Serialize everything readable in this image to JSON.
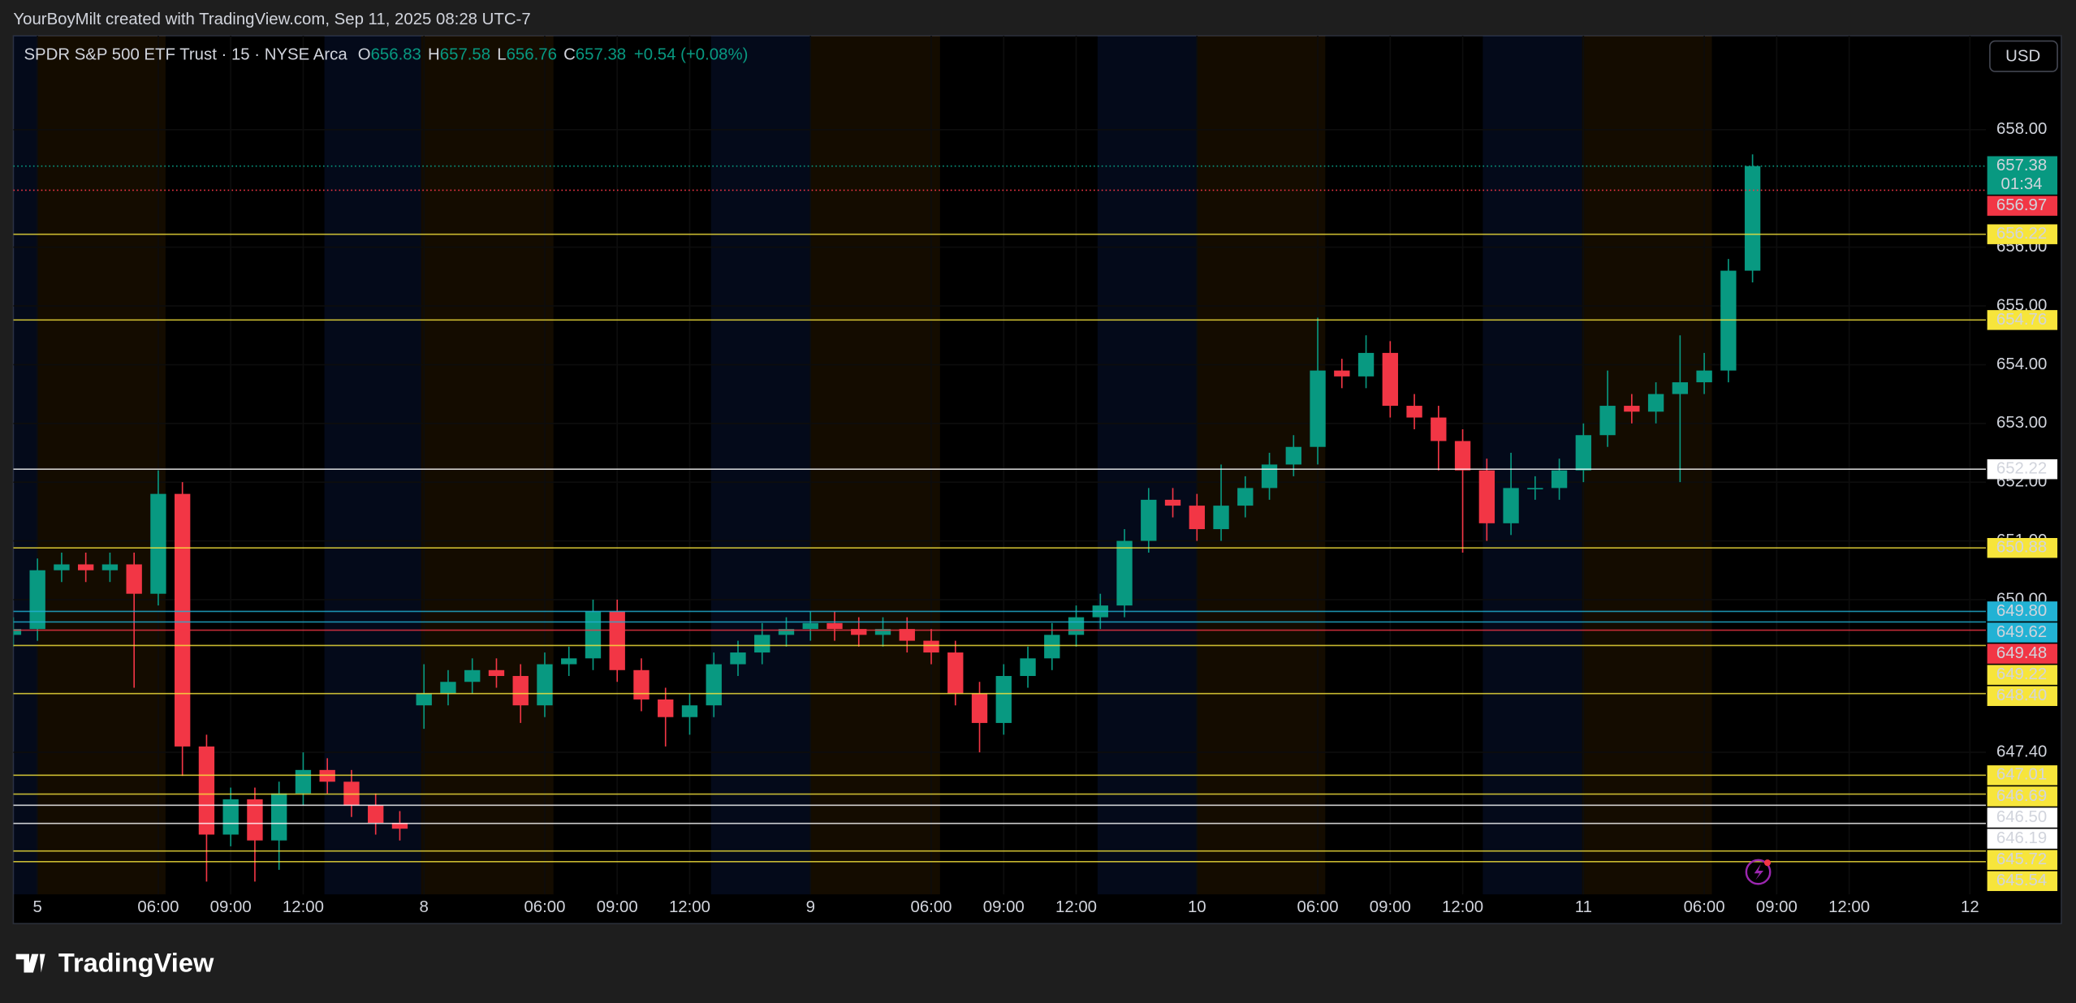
{
  "header": "YourBoyMilt created with TradingView.com, Sep 11, 2025 08:28 UTC-7",
  "footer_logo": "TradingView",
  "currency": "USD",
  "chart_data": {
    "type": "candlestick",
    "legend": {
      "symbol": "SPDR S&P 500 ETF Trust · 15 · NYSE Arca",
      "ohlc": [
        {
          "key": "O",
          "value": "656.83"
        },
        {
          "key": "H",
          "value": "657.58"
        },
        {
          "key": "L",
          "value": "656.76"
        },
        {
          "key": "C",
          "value": "657.38"
        }
      ],
      "change": "+0.54 (+0.08%)"
    },
    "up_color": "#089981",
    "down_color": "#f23645",
    "x": [
      -1,
      0,
      1,
      2,
      3,
      4,
      5,
      6,
      7,
      8,
      9,
      10,
      11,
      12,
      13,
      14,
      15,
      16,
      17,
      18,
      19,
      20,
      21,
      22,
      23,
      24,
      25,
      26,
      27,
      28,
      29,
      30,
      31,
      32,
      33,
      34,
      35,
      36,
      37,
      38,
      39,
      40,
      41,
      42,
      43,
      44,
      45,
      46,
      47,
      48,
      49,
      50,
      51,
      52,
      53,
      54,
      55,
      56,
      57,
      58,
      59,
      60,
      61,
      62,
      63,
      64,
      65,
      66,
      67,
      68,
      69,
      70,
      71
    ],
    "open": [
      649.4,
      649.5,
      650.5,
      650.6,
      650.5,
      650.6,
      650.1,
      651.8,
      647.5,
      646.0,
      646.6,
      645.9,
      646.7,
      647.1,
      646.9,
      646.5,
      646.2,
      648.2,
      648.4,
      648.6,
      648.8,
      648.7,
      648.2,
      648.9,
      649.0,
      649.8,
      648.8,
      648.3,
      648.0,
      648.2,
      648.9,
      649.1,
      649.4,
      649.5,
      649.6,
      649.5,
      649.4,
      649.5,
      649.3,
      649.1,
      648.4,
      647.9,
      648.7,
      649.0,
      649.4,
      649.7,
      649.9,
      651.0,
      651.7,
      651.6,
      651.2,
      651.6,
      651.9,
      652.3,
      652.6,
      653.9,
      653.8,
      654.2,
      653.3,
      653.1,
      652.7,
      652.2,
      651.3,
      651.9,
      651.9,
      652.2,
      652.8,
      653.3,
      653.2,
      653.5,
      653.7,
      653.9,
      655.6
    ],
    "high": [
      649.7,
      650.7,
      650.8,
      650.8,
      650.8,
      650.8,
      652.2,
      652.0,
      647.7,
      646.8,
      646.8,
      646.9,
      647.4,
      647.3,
      647.1,
      646.7,
      646.4,
      648.9,
      648.8,
      649.0,
      649.0,
      648.9,
      649.1,
      649.2,
      650.0,
      650.0,
      649.0,
      648.5,
      648.4,
      649.1,
      649.3,
      649.6,
      649.7,
      649.8,
      649.8,
      649.7,
      649.7,
      649.7,
      649.5,
      649.3,
      648.6,
      648.9,
      649.2,
      649.6,
      649.9,
      650.1,
      651.2,
      651.9,
      651.9,
      651.8,
      652.3,
      652.1,
      652.5,
      652.8,
      654.8,
      654.1,
      654.5,
      654.4,
      653.5,
      653.3,
      652.9,
      652.4,
      652.5,
      652.1,
      652.4,
      653.0,
      653.9,
      653.5,
      653.7,
      654.5,
      654.2,
      655.8,
      657.58
    ],
    "low": [
      649.2,
      649.3,
      650.3,
      650.3,
      650.3,
      648.5,
      649.9,
      647.0,
      645.2,
      645.8,
      645.2,
      645.4,
      646.5,
      646.7,
      646.3,
      646.0,
      645.9,
      647.8,
      648.2,
      648.4,
      648.5,
      647.9,
      648.0,
      648.7,
      648.8,
      648.6,
      648.1,
      647.5,
      647.7,
      648.0,
      648.7,
      648.9,
      649.2,
      649.3,
      649.3,
      649.2,
      649.2,
      649.1,
      648.9,
      648.2,
      647.4,
      647.7,
      648.5,
      648.8,
      649.2,
      649.5,
      649.7,
      650.8,
      651.4,
      651.0,
      651.0,
      651.4,
      651.7,
      652.1,
      652.3,
      653.6,
      653.6,
      653.1,
      652.9,
      652.2,
      650.8,
      651.0,
      651.1,
      651.7,
      651.7,
      652.0,
      652.6,
      653.0,
      653.0,
      652.0,
      653.5,
      653.7,
      655.4
    ],
    "close": [
      649.5,
      650.5,
      650.6,
      650.5,
      650.6,
      650.1,
      651.8,
      647.5,
      646.0,
      646.6,
      645.9,
      646.7,
      647.1,
      646.9,
      646.5,
      646.2,
      646.1,
      648.4,
      648.6,
      648.8,
      648.7,
      648.2,
      648.9,
      649.0,
      649.8,
      648.8,
      648.3,
      648.0,
      648.2,
      648.9,
      649.1,
      649.4,
      649.5,
      649.6,
      649.5,
      649.4,
      649.5,
      649.3,
      649.1,
      648.4,
      647.9,
      648.7,
      649.0,
      649.4,
      649.7,
      649.9,
      651.0,
      651.7,
      651.6,
      651.2,
      651.6,
      651.9,
      652.3,
      652.6,
      653.9,
      653.8,
      654.2,
      653.3,
      653.1,
      652.7,
      652.2,
      651.3,
      651.9,
      651.9,
      652.2,
      652.8,
      653.3,
      653.2,
      653.5,
      653.7,
      653.9,
      655.6,
      657.38
    ],
    "xlim": [
      -1,
      80.66
    ],
    "xticks": [
      {
        "value": 0,
        "label": "5"
      },
      {
        "value": 5,
        "label": "06:00"
      },
      {
        "value": 8,
        "label": "09:00"
      },
      {
        "value": 11,
        "label": "12:00"
      },
      {
        "value": 16,
        "label": "8"
      },
      {
        "value": 21,
        "label": "06:00"
      },
      {
        "value": 24,
        "label": "09:00"
      },
      {
        "value": 27,
        "label": "12:00"
      },
      {
        "value": 32,
        "label": "9"
      },
      {
        "value": 37,
        "label": "06:00"
      },
      {
        "value": 40,
        "label": "09:00"
      },
      {
        "value": 43,
        "label": "12:00"
      },
      {
        "value": 48,
        "label": "10"
      },
      {
        "value": 53,
        "label": "06:00"
      },
      {
        "value": 56,
        "label": "09:00"
      },
      {
        "value": 59,
        "label": "12:00"
      },
      {
        "value": 64,
        "label": "11"
      },
      {
        "value": 69,
        "label": "06:00"
      },
      {
        "value": 72,
        "label": "09:00"
      },
      {
        "value": 75,
        "label": "12:00"
      },
      {
        "value": 80,
        "label": "12"
      }
    ],
    "ylim": [
      644.98,
      659.6
    ],
    "yticks": [
      {
        "value": 658,
        "label": "658.00"
      },
      {
        "value": 656,
        "label": "656.00"
      },
      {
        "value": 655,
        "label": "655.00"
      },
      {
        "value": 654,
        "label": "654.00"
      },
      {
        "value": 653,
        "label": "653.00"
      },
      {
        "value": 652,
        "label": "652.00"
      },
      {
        "value": 651,
        "label": "651.00"
      },
      {
        "value": 650,
        "label": "650.00"
      },
      {
        "value": 647.4,
        "label": "647.40"
      }
    ],
    "last_price": {
      "value": 657.38,
      "label": "657.38",
      "countdown": "01:34",
      "color": "#089981"
    },
    "prev_price": {
      "value": 656.97,
      "label": "656.97",
      "color": "#f23645"
    },
    "levels": [
      {
        "value": 656.22,
        "label": "656.22",
        "color": "#f7e53b",
        "text_color": "#000000"
      },
      {
        "value": 654.76,
        "label": "654.76",
        "color": "#f7e53b",
        "text_color": "#000000"
      },
      {
        "value": 652.22,
        "label": "652.22",
        "color": "#ffffff",
        "text_color": "#000000"
      },
      {
        "value": 650.88,
        "label": "650.88",
        "color": "#f7e53b",
        "text_color": "#000000"
      },
      {
        "value": 649.8,
        "label": "649.80",
        "color": "#22b2d4",
        "text_color": "#000000"
      },
      {
        "value": 649.62,
        "label": "649.62",
        "color": "#22b2d4",
        "text_color": "#000000"
      },
      {
        "value": 649.48,
        "label": "649.48",
        "color": "#f23645",
        "text_color": "#ffffff"
      },
      {
        "value": 649.22,
        "label": "649.22",
        "color": "#f7e53b",
        "text_color": "#000000"
      },
      {
        "value": 648.4,
        "label": "648.40",
        "color": "#f7e53b",
        "text_color": "#000000"
      },
      {
        "value": 647.01,
        "label": "647.01",
        "color": "#f7e53b",
        "text_color": "#000000"
      },
      {
        "value": 646.69,
        "label": "646.69",
        "color": "#f7e53b",
        "text_color": "#000000"
      },
      {
        "value": 646.5,
        "label": "646.50",
        "color": "#ffffff",
        "text_color": "#000000"
      },
      {
        "value": 646.19,
        "label": "646.19",
        "color": "#ffffff",
        "text_color": "#000000"
      },
      {
        "value": 645.72,
        "label": "645.72",
        "color": "#f7e53b",
        "text_color": "#000000"
      },
      {
        "value": 645.54,
        "label": "645.54",
        "color": "#f7e53b",
        "text_color": "#000000"
      }
    ]
  }
}
